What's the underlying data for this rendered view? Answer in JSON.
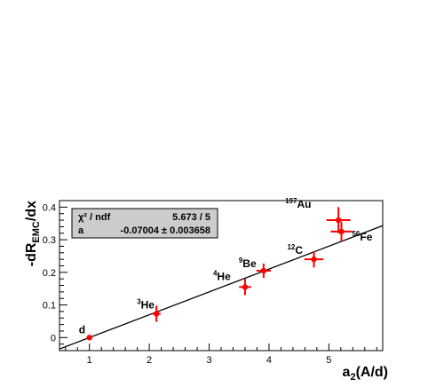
{
  "chart_data": {
    "type": "scatter",
    "xlabel_main": "a",
    "xlabel_sub": "2",
    "xlabel_rest": "(A/d)",
    "ylabel_pre": "-dR",
    "ylabel_sub": "EMC",
    "ylabel_post": "/dx",
    "xlim": [
      0.5,
      5.9
    ],
    "ylim": [
      -0.04,
      0.42
    ],
    "x_ticks": [
      1,
      2,
      3,
      4,
      5
    ],
    "x_tick_labels": [
      "1",
      "2",
      "3",
      "4",
      "5"
    ],
    "y_ticks": [
      0,
      0.1,
      0.2,
      0.3,
      0.4
    ],
    "y_tick_labels": [
      "0",
      "0.1",
      "0.2",
      "0.3",
      "0.4"
    ],
    "marker_color": "#ff0000",
    "points": [
      {
        "label_sup": "",
        "label_main": "d",
        "x": 1.0,
        "y": 0.0,
        "xerr": 0.0,
        "yerr": 0.0
      },
      {
        "label_sup": "3",
        "label_main": "He",
        "x": 2.12,
        "y": 0.073,
        "xerr": 0.07,
        "yerr": 0.025
      },
      {
        "label_sup": "4",
        "label_main": "He",
        "x": 3.6,
        "y": 0.155,
        "xerr": 0.1,
        "yerr": 0.025
      },
      {
        "label_sup": "9",
        "label_main": "Be",
        "x": 3.91,
        "y": 0.205,
        "xerr": 0.12,
        "yerr": 0.022
      },
      {
        "label_sup": "12",
        "label_main": "C",
        "x": 4.75,
        "y": 0.24,
        "xerr": 0.16,
        "yerr": 0.025
      },
      {
        "label_sup": "197",
        "label_main": "Au",
        "x": 5.16,
        "y": 0.36,
        "xerr": 0.2,
        "yerr": 0.04
      },
      {
        "label_sup": "56",
        "label_main": "Fe",
        "x": 5.21,
        "y": 0.325,
        "xerr": 0.18,
        "yerr": 0.03
      }
    ],
    "fit_line": {
      "slope": -0.07004,
      "x_range": [
        0.5,
        5.9
      ]
    },
    "stats_box": {
      "row1_name": "χ² / ndf",
      "row1_value": "5.673 / 5",
      "row2_name": "a",
      "row2_value": "-0.07004 ± 0.003658"
    }
  }
}
